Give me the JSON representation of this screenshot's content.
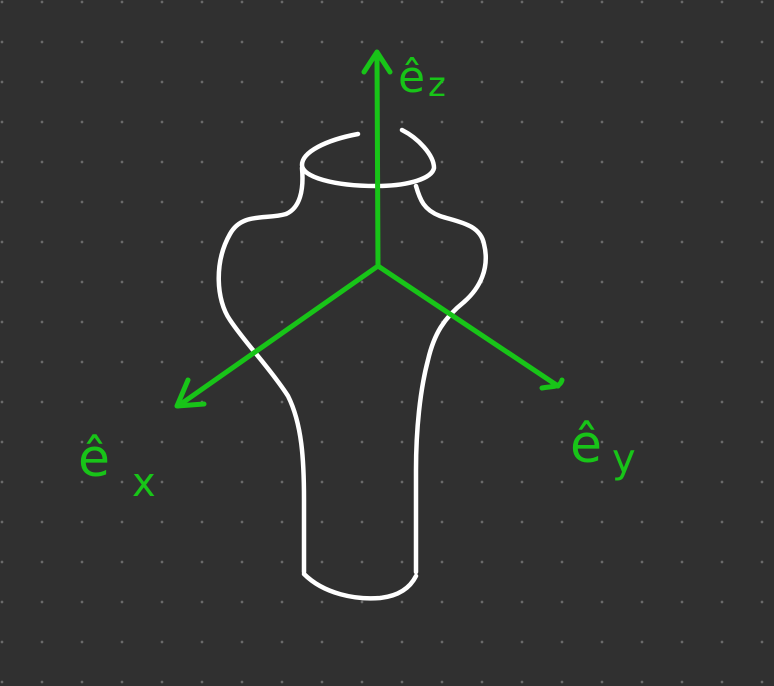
{
  "canvas": {
    "background_color": "#303030",
    "grid": "dotted"
  },
  "diagram": {
    "axis_color": "#18c418",
    "shape_color": "#ffffff",
    "axes": [
      {
        "id": "z",
        "label": "ê",
        "subscript": "z"
      },
      {
        "id": "x",
        "label": "ê",
        "subscript": "x"
      },
      {
        "id": "y",
        "label": "ê",
        "subscript": "y"
      }
    ]
  }
}
